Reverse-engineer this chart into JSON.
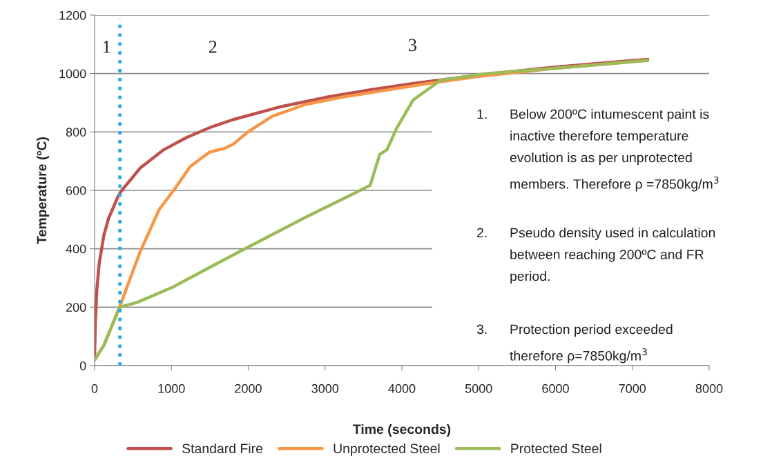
{
  "chart_data": {
    "type": "line",
    "xlabel": "Time (seconds)",
    "ylabel": "Temperature (ºC)",
    "xlim": [
      0,
      8000
    ],
    "xticks": [
      0,
      1000,
      2000,
      3000,
      4000,
      5000,
      6000,
      7000,
      8000
    ],
    "ylim": [
      0,
      1200
    ],
    "yticks": [
      0,
      200,
      400,
      600,
      800,
      1000,
      1200
    ],
    "grid": "y",
    "legend": "bottom",
    "marker": "none",
    "line_style": "solid",
    "series": [
      {
        "name": "Standard Fire",
        "color": "#c0504d",
        "x": [
          0,
          10,
          30,
          60,
          120,
          180,
          300,
          345,
          600,
          900,
          1200,
          1500,
          1800,
          2400,
          3000,
          3600,
          4200,
          4800,
          5400,
          6000,
          6600,
          7200
        ],
        "values": [
          20,
          147,
          261,
          349,
          445,
          502,
          576,
          597,
          678,
          739,
          781,
          815,
          842,
          885,
          918,
          945,
          968,
          988,
          1006,
          1022,
          1036,
          1049
        ]
      },
      {
        "name": "Unprotected Steel",
        "color": "#f79646",
        "x": [
          0,
          124,
          326,
          592,
          842,
          1029,
          1247,
          1497,
          1683,
          1810,
          1996,
          2307,
          2742,
          3200,
          3600,
          4200,
          4500,
          5000,
          6000,
          7200
        ],
        "values": [
          20,
          71,
          201,
          389,
          535,
          600,
          682,
          731,
          743,
          759,
          800,
          853,
          894,
          918,
          935,
          960,
          972,
          990,
          1018,
          1045
        ]
      },
      {
        "name": "Protected Steel",
        "color": "#9bbb59",
        "x": [
          0,
          124,
          326,
          561,
          1029,
          1497,
          1964,
          2742,
          3587,
          3712,
          3806,
          3931,
          4149,
          4431,
          4489,
          5095,
          6000,
          7200
        ],
        "values": [
          18,
          71,
          200,
          217,
          270,
          336,
          401,
          507,
          617,
          723,
          739,
          812,
          910,
          963,
          976,
          1000,
          1018,
          1045
        ]
      }
    ],
    "ref_lines": [
      {
        "axis": "x",
        "value": 330,
        "color": "#29abe2",
        "line_style": "dotted"
      }
    ],
    "annotations": [
      "1",
      "2",
      "3",
      "1.\tBelow 200ºC intumescent paint is\ninactive therefore temperature\nevolution is as per unprotected\nmembers. Therefore ρ =7850kg/m$^{3}$",
      "2.\tPseudo density used in calculation\nbetween reaching 200ºC and FR\nperiod.",
      "3.\tProtection period exceeded\ntherefore ρ=7850kg/m$^{3}$"
    ]
  }
}
